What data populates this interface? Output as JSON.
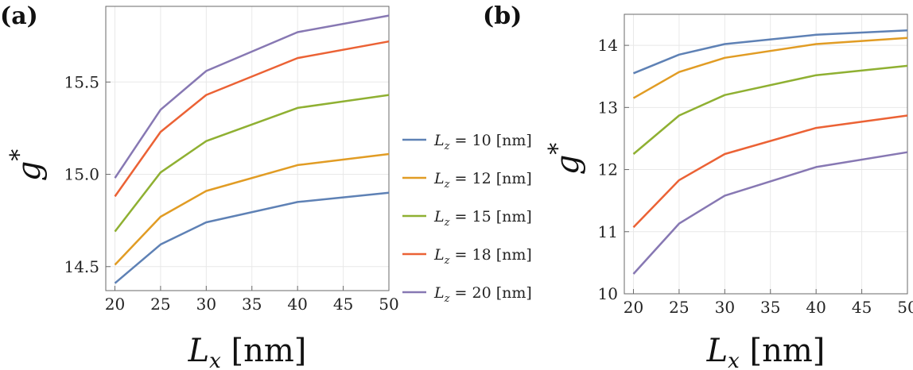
{
  "legend": {
    "entries": [
      {
        "var": "L",
        "sub": "z",
        "text": " = 10 [nm]",
        "color": "#5e81b5"
      },
      {
        "var": "L",
        "sub": "z",
        "text": " = 12 [nm]",
        "color": "#e19c24"
      },
      {
        "var": "L",
        "sub": "z",
        "text": " = 15 [nm]",
        "color": "#8fb032"
      },
      {
        "var": "L",
        "sub": "z",
        "text": " = 18 [nm]",
        "color": "#eb6235"
      },
      {
        "var": "L",
        "sub": "z",
        "text": " = 20 [nm]",
        "color": "#8778b3"
      }
    ]
  },
  "chart_data": [
    {
      "type": "line",
      "panel_label": "(a)",
      "xlabel": {
        "var": "L",
        "sub": "x",
        "unit": " [nm]"
      },
      "ylabel": {
        "var": "g",
        "sup": "*"
      },
      "x": [
        20,
        25,
        30,
        40,
        50
      ],
      "xticks": [
        20,
        25,
        30,
        35,
        40,
        45,
        50
      ],
      "xlim": [
        19,
        50
      ],
      "yticks": [
        14.5,
        15.0,
        15.5
      ],
      "ytick_labels": [
        "14.5",
        "15.0",
        "15.5"
      ],
      "ylim": [
        14.37,
        15.91
      ],
      "grid": true,
      "series": [
        {
          "name": "Lz = 10 [nm]",
          "color": "#5e81b5",
          "values": [
            14.41,
            14.62,
            14.74,
            14.85,
            14.9
          ]
        },
        {
          "name": "Lz = 12 [nm]",
          "color": "#e19c24",
          "values": [
            14.51,
            14.77,
            14.91,
            15.05,
            15.11
          ]
        },
        {
          "name": "Lz = 15 [nm]",
          "color": "#8fb032",
          "values": [
            14.69,
            15.01,
            15.18,
            15.36,
            15.43
          ]
        },
        {
          "name": "Lz = 18 [nm]",
          "color": "#eb6235",
          "values": [
            14.88,
            15.23,
            15.43,
            15.63,
            15.72
          ]
        },
        {
          "name": "Lz = 20 [nm]",
          "color": "#8778b3",
          "values": [
            14.98,
            15.35,
            15.56,
            15.77,
            15.86
          ]
        }
      ]
    },
    {
      "type": "line",
      "panel_label": "(b)",
      "xlabel": {
        "var": "L",
        "sub": "x",
        "unit": " [nm]"
      },
      "ylabel": {
        "var": "g",
        "sup": "*"
      },
      "x": [
        20,
        25,
        30,
        40,
        50
      ],
      "xticks": [
        20,
        25,
        30,
        35,
        40,
        45,
        50
      ],
      "xlim": [
        19,
        50
      ],
      "yticks": [
        10,
        11,
        12,
        13,
        14
      ],
      "ytick_labels": [
        "10",
        "11",
        "12",
        "13",
        "14"
      ],
      "ylim": [
        10.0,
        14.5
      ],
      "grid": true,
      "series": [
        {
          "name": "Lz = 10 [nm]",
          "color": "#5e81b5",
          "values": [
            13.55,
            13.85,
            14.02,
            14.17,
            14.24
          ]
        },
        {
          "name": "Lz = 12 [nm]",
          "color": "#e19c24",
          "values": [
            13.15,
            13.57,
            13.8,
            14.02,
            14.12
          ]
        },
        {
          "name": "Lz = 15 [nm]",
          "color": "#8fb032",
          "values": [
            12.25,
            12.87,
            13.2,
            13.52,
            13.67
          ]
        },
        {
          "name": "Lz = 18 [nm]",
          "color": "#eb6235",
          "values": [
            11.07,
            11.83,
            12.25,
            12.67,
            12.87
          ]
        },
        {
          "name": "Lz = 20 [nm]",
          "color": "#8778b3",
          "values": [
            10.32,
            11.13,
            11.58,
            12.04,
            12.28
          ]
        }
      ]
    }
  ]
}
